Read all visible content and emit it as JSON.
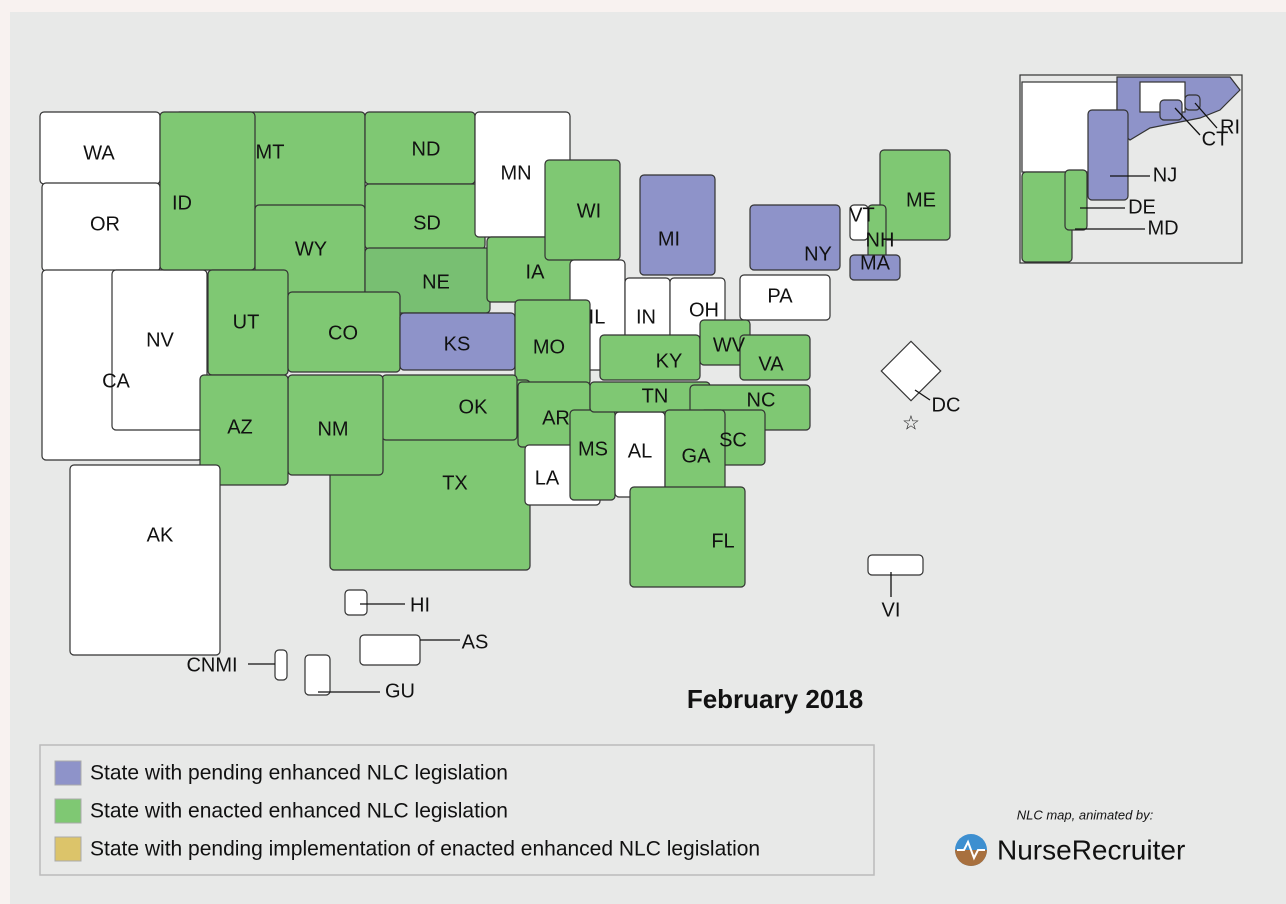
{
  "map": {
    "title": "February 2018",
    "regions": [
      {
        "label": "WA",
        "color": "#ffffff"
      },
      {
        "label": "OR",
        "color": "#ffffff"
      },
      {
        "label": "CA",
        "color": "#ffffff"
      },
      {
        "label": "NV",
        "color": "#ffffff"
      },
      {
        "label": "MT",
        "color": "#7fc873"
      },
      {
        "label": "ID",
        "color": "#7fc873"
      },
      {
        "label": "WY",
        "color": "#7fc873"
      },
      {
        "label": "ND",
        "color": "#7fc873"
      },
      {
        "label": "SD",
        "color": "#7fc873"
      },
      {
        "label": "NE",
        "color": "#78bf72"
      },
      {
        "label": "MN",
        "color": "#ffffff"
      },
      {
        "label": "IA",
        "color": "#7fc873"
      },
      {
        "label": "WI",
        "color": "#7fc873"
      },
      {
        "label": "MI",
        "color": "#8e93c9"
      },
      {
        "label": "IL",
        "color": "#ffffff"
      },
      {
        "label": "IN",
        "color": "#ffffff"
      },
      {
        "label": "OH",
        "color": "#ffffff"
      },
      {
        "label": "PA",
        "color": "#ffffff"
      },
      {
        "label": "NY",
        "color": "#8e93c9"
      },
      {
        "label": "ME",
        "color": "#7fc873"
      },
      {
        "label": "VT",
        "color": "#ffffff"
      },
      {
        "label": "NH",
        "color": "#7fc873"
      },
      {
        "label": "MA",
        "color": "#8e93c9"
      },
      {
        "label": "UT",
        "color": "#7fc873"
      },
      {
        "label": "CO",
        "color": "#7fc873"
      },
      {
        "label": "KS",
        "color": "#8e93c9"
      },
      {
        "label": "MO",
        "color": "#7fc873"
      },
      {
        "label": "TX",
        "color": "#7fc873"
      },
      {
        "label": "OK",
        "color": "#7fc873"
      },
      {
        "label": "NM",
        "color": "#7fc873"
      },
      {
        "label": "AZ",
        "color": "#7fc873"
      },
      {
        "label": "AR",
        "color": "#7fc873"
      },
      {
        "label": "LA",
        "color": "#ffffff"
      },
      {
        "label": "MS",
        "color": "#7fc873"
      },
      {
        "label": "AL",
        "color": "#ffffff"
      },
      {
        "label": "TN",
        "color": "#7fc873"
      },
      {
        "label": "KY",
        "color": "#7fc873"
      },
      {
        "label": "WV",
        "color": "#7fc873"
      },
      {
        "label": "VA",
        "color": "#7fc873"
      },
      {
        "label": "NC",
        "color": "#7fc873"
      },
      {
        "label": "SC",
        "color": "#7fc873"
      },
      {
        "label": "GA",
        "color": "#7fc873"
      },
      {
        "label": "FL",
        "color": "#7fc873"
      },
      {
        "label": "AK",
        "color": "#ffffff"
      },
      {
        "label": "NJ",
        "color": "#8e93c9"
      },
      {
        "label": "CT",
        "color": "#8e93c9"
      },
      {
        "label": "RI",
        "color": "#8e93c9"
      },
      {
        "label": "MD",
        "color": "#7fc873"
      },
      {
        "label": "DE",
        "color": "#7fc873"
      },
      {
        "label": "DC",
        "color": "#ffffff"
      },
      {
        "label": "HI",
        "color": "#ffffff"
      },
      {
        "label": "AS",
        "color": "#ffffff"
      },
      {
        "label": "CNMI",
        "color": "#ffffff"
      },
      {
        "label": "GU",
        "color": "#ffffff"
      },
      {
        "label": "VI",
        "color": "#ffffff"
      }
    ],
    "legend": [
      {
        "label": "State with pending enhanced NLC legislation",
        "color": "#8e93c9"
      },
      {
        "label": "State with enacted enhanced NLC legislation",
        "color": "#7fc873"
      },
      {
        "label": "State with pending implementation of enacted enhanced NLC legislation",
        "color": "#dcc46a"
      }
    ],
    "credit": "NLC map, animated by:",
    "brand": "NurseRecruiter"
  }
}
